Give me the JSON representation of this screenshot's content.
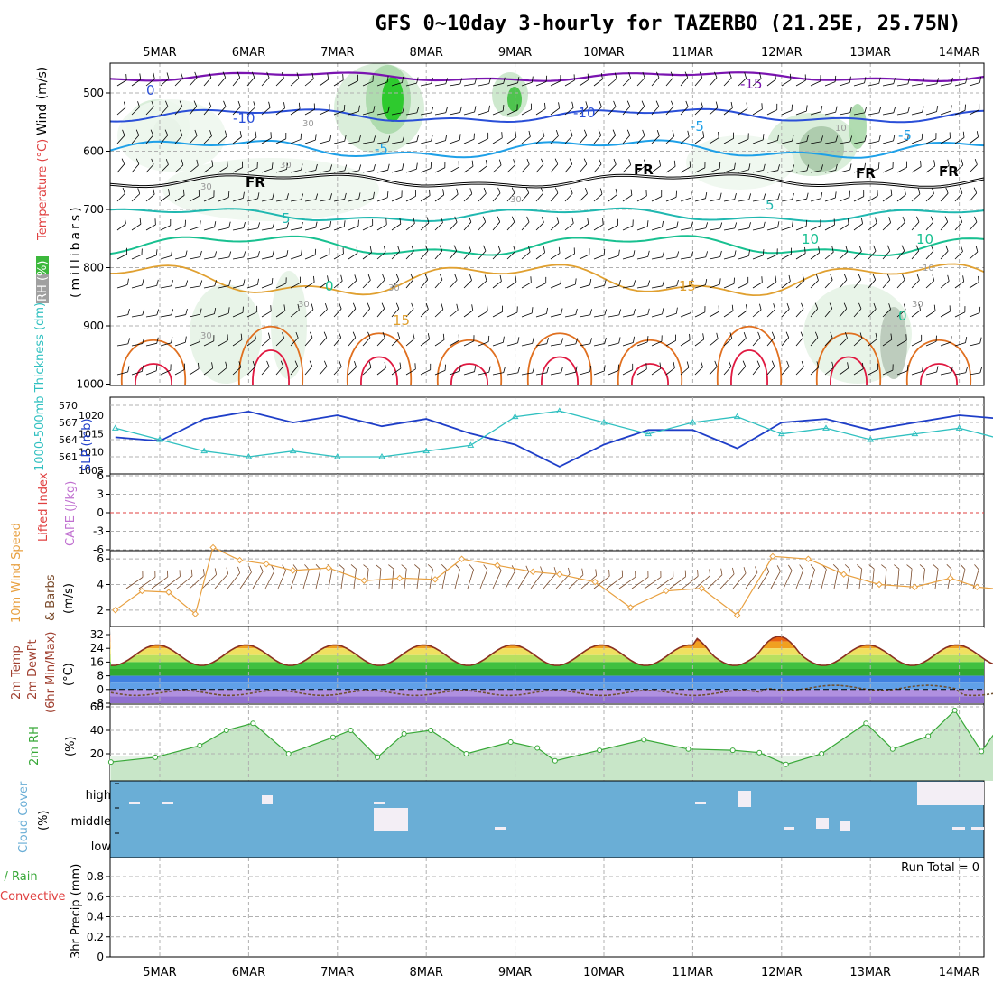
{
  "title": "GFS 0~10day 3-hourly for TAZERBO (21.25E, 25.75N)",
  "dates": [
    "5MAR",
    "6MAR",
    "7MAR",
    "8MAR",
    "9MAR",
    "10MAR",
    "11MAR",
    "12MAR",
    "13MAR",
    "14MAR"
  ],
  "colors": {
    "temp_cold": "#7a14b0",
    "temp_m10": "#2a4fd8",
    "temp_m5": "#1ea0e8",
    "freezing": "#000000",
    "temp_p5": "#20b8b0",
    "temp_p10": "#18c090",
    "temp_p15": "#e0a030",
    "temp_p20": "#e07020",
    "temp_p25": "#e01840",
    "rh_fill": "#a8d8a8",
    "slp": "#1e3ec8",
    "thickness": "#30c0c0",
    "wind_speed": "#e8a040",
    "wind_barb": "#7a4a2a",
    "temp_fill_warm": "#f0a020",
    "dewpoint": "#705030",
    "rh2m": "#38a838",
    "cloud_bg": "#6aaed6",
    "cloud_patch": "#f3eef5",
    "grid": "#b0b0b0",
    "lifted_index": "#e04040"
  },
  "panels": {
    "profile": {
      "ylabel_parts": [
        "RH (%)",
        "Temperature (°C)",
        "Wind (m/s)"
      ],
      "ylabel_unit": "(millibars)",
      "yticks": [
        "500",
        "600",
        "700",
        "800",
        "900",
        "1000"
      ],
      "contour_labels": [
        "0",
        "-10",
        "-10",
        "-5",
        "-5",
        "-15",
        "5",
        "5",
        "10",
        "10",
        "-5",
        "15",
        "15",
        "0",
        "0",
        "FR",
        "FR",
        "FR",
        "FR"
      ],
      "rh_labels": [
        "30",
        "30",
        "30",
        "30",
        "30",
        "30",
        "30",
        "30",
        "10",
        "10"
      ]
    },
    "thickness_slp": {
      "ylabel_left": "1000-500mb Thickness (dm)",
      "ylabel_right": "SLP (mb)",
      "yticks_left": [
        "570",
        "567",
        "564",
        "561"
      ],
      "yticks_right": [
        "1020",
        "1015",
        "1010",
        "1005"
      ]
    },
    "cape": {
      "ylabel_left": "Lifted Index",
      "ylabel_right": "CAPE (J/kg)",
      "yticks": [
        "6",
        "3",
        "0",
        "-3",
        "-6"
      ]
    },
    "wind10m": {
      "ylabel_parts": [
        "10m Wind Speed",
        "& Barbs",
        "(m/s)"
      ],
      "yticks": [
        "6",
        "4",
        "2"
      ]
    },
    "temp2m": {
      "ylabel_parts": [
        "2m Temp",
        "2m DewPt",
        "(6hr Min/Max)",
        "(°C)"
      ],
      "yticks": [
        "32",
        "24",
        "16",
        "8",
        "0",
        "-8"
      ]
    },
    "rh2m": {
      "ylabel": "2m RH",
      "unit": "(%)",
      "yticks": [
        "60",
        "40",
        "20"
      ]
    },
    "cloud": {
      "ylabel": "Cloud Cover",
      "unit": "(%)",
      "yticks": [
        "high",
        "middle",
        "low"
      ]
    },
    "precip": {
      "ylabel_parts": [
        "Total / Rain",
        "Convective",
        "3hr Precip (mm)"
      ],
      "yticks": [
        "0.8",
        "0.6",
        "0.4",
        "0.2",
        "0"
      ],
      "run_total": "Run Total = 0"
    }
  },
  "chart_data": [
    {
      "type": "line",
      "title": "GFS 0~10day 3-hourly for TAZERBO (21.25E, 25.75N)",
      "series": [
        {
          "name": "SLP (mb)",
          "x_days": [
            0,
            0.5,
            1,
            1.5,
            2,
            2.5,
            3,
            3.5,
            4,
            4.5,
            5,
            5.5,
            6,
            6.5,
            7,
            7.5,
            8,
            8.5,
            9,
            9.5,
            10
          ],
          "values": [
            1014,
            1013,
            1019,
            1021,
            1018,
            1020,
            1017,
            1019,
            1015,
            1012,
            1006,
            1012,
            1016,
            1016,
            1011,
            1018,
            1019,
            1016,
            1018,
            1020,
            1019
          ]
        },
        {
          "name": "1000-500mb Thickness (dm)",
          "x_days": [
            0,
            0.5,
            1,
            1.5,
            2,
            2.5,
            3,
            3.5,
            4,
            4.5,
            5,
            5.5,
            6,
            6.5,
            7,
            7.5,
            8,
            8.5,
            9,
            9.5,
            10
          ],
          "values": [
            566,
            564,
            562,
            561,
            562,
            561,
            561,
            562,
            563,
            568,
            569,
            567,
            565,
            567,
            568,
            565,
            566,
            564,
            565,
            566,
            564
          ]
        },
        {
          "name": "10m Wind Speed (m/s)",
          "x_days": [
            0,
            0.3,
            0.6,
            0.9,
            1.1,
            1.4,
            1.7,
            2,
            2.4,
            2.8,
            3.2,
            3.6,
            3.9,
            4.3,
            4.7,
            5,
            5.4,
            5.8,
            6.2,
            6.6,
            7,
            7.4,
            7.8,
            8.2,
            8.6,
            9,
            9.4,
            9.7,
            10
          ],
          "values": [
            2,
            3.5,
            3.4,
            1.7,
            6.9,
            5.9,
            5.6,
            5.1,
            5.3,
            4.3,
            4.5,
            4.4,
            6,
            5.5,
            5,
            4.8,
            4.2,
            2.2,
            3.5,
            3.7,
            1.6,
            6.2,
            6,
            4.8,
            4,
            3.8,
            4.5,
            3.8,
            3.6
          ]
        },
        {
          "name": "2m RH (%)",
          "x_days": [
            0,
            0.5,
            1,
            1.3,
            1.6,
            2,
            2.5,
            2.7,
            3,
            3.3,
            3.6,
            4,
            4.5,
            4.8,
            5,
            5.5,
            6,
            6.5,
            7,
            7.3,
            7.6,
            8,
            8.5,
            8.8,
            9.2,
            9.5,
            9.8,
            10
          ],
          "values": [
            13,
            17,
            27,
            40,
            46,
            20,
            34,
            40,
            17,
            37,
            40,
            20,
            30,
            25,
            14,
            23,
            32,
            24,
            23,
            21,
            11,
            20,
            46,
            24,
            35,
            57,
            22,
            43
          ]
        }
      ],
      "xlabel": "",
      "ylabel": ""
    }
  ]
}
